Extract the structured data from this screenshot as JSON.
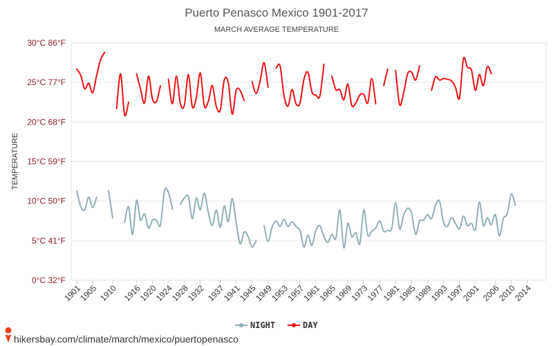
{
  "chart_data": {
    "type": "line",
    "title": "Puerto Penasco Mexico 1901-2017",
    "subtitle": "MARCH AVERAGE TEMPERATURE",
    "ylabel": "TEMPERATURE",
    "ylim": [
      0,
      30
    ],
    "yticks": [
      {
        "value": 0,
        "label": "0°C 32°F"
      },
      {
        "value": 5,
        "label": "5°C 41°F"
      },
      {
        "value": 10,
        "label": "10°C 50°F"
      },
      {
        "value": 15,
        "label": "15°C 59°F"
      },
      {
        "value": 20,
        "label": "20°C 68°F"
      },
      {
        "value": 25,
        "label": "25°C 77°F"
      },
      {
        "value": 30,
        "label": "30°C 86°F"
      }
    ],
    "xlim": [
      1901,
      2017
    ],
    "xticks": [
      1901,
      1905,
      1910,
      1916,
      1920,
      1924,
      1928,
      1932,
      1937,
      1941,
      1945,
      1949,
      1953,
      1957,
      1961,
      1965,
      1969,
      1973,
      1977,
      1981,
      1985,
      1989,
      1993,
      1997,
      2001,
      2006,
      2010,
      2014
    ],
    "grid": true,
    "legend_position": "bottom",
    "series": [
      {
        "name": "NIGHT",
        "color": "#90aeb6",
        "points": [
          [
            1901,
            11.3
          ],
          [
            1902,
            9.3
          ],
          [
            1903,
            8.9
          ],
          [
            1904,
            10.5
          ],
          [
            1905,
            9.2
          ],
          [
            1906,
            10.5
          ],
          null,
          [
            1909,
            11.3
          ],
          [
            1910,
            7.9
          ],
          null,
          [
            1913,
            7.3
          ],
          [
            1914,
            9.3
          ],
          [
            1915,
            5.8
          ],
          [
            1916,
            10.1
          ],
          [
            1917,
            7.6
          ],
          [
            1918,
            8.4
          ],
          [
            1919,
            6.6
          ],
          [
            1920,
            7.6
          ],
          [
            1921,
            7.6
          ],
          [
            1922,
            7.0
          ],
          [
            1923,
            11.3
          ],
          [
            1924,
            11.1
          ],
          [
            1925,
            9.0
          ],
          null,
          [
            1927,
            9.6
          ],
          [
            1928,
            10.4
          ],
          [
            1929,
            10.6
          ],
          [
            1930,
            7.8
          ],
          [
            1931,
            10.4
          ],
          [
            1932,
            8.9
          ],
          [
            1933,
            11.0
          ],
          [
            1934,
            8.6
          ],
          [
            1935,
            6.9
          ],
          [
            1936,
            8.9
          ],
          [
            1937,
            6.7
          ],
          [
            1938,
            9.4
          ],
          [
            1939,
            7.4
          ],
          [
            1940,
            10.3
          ],
          [
            1941,
            7.3
          ],
          [
            1942,
            4.6
          ],
          [
            1943,
            6.1
          ],
          [
            1944,
            5.5
          ],
          [
            1945,
            4.2
          ],
          [
            1946,
            5.0
          ],
          null,
          [
            1948,
            6.9
          ],
          [
            1949,
            4.9
          ],
          [
            1950,
            6.7
          ],
          [
            1951,
            7.5
          ],
          [
            1952,
            6.8
          ],
          [
            1953,
            7.7
          ],
          [
            1954,
            6.8
          ],
          [
            1955,
            7.4
          ],
          [
            1956,
            6.8
          ],
          [
            1957,
            6.3
          ],
          [
            1958,
            4.2
          ],
          [
            1959,
            5.7
          ],
          [
            1960,
            4.4
          ],
          [
            1961,
            6.3
          ],
          [
            1962,
            6.9
          ],
          [
            1963,
            5.5
          ],
          [
            1964,
            4.8
          ],
          [
            1965,
            5.8
          ],
          [
            1966,
            5.3
          ],
          [
            1967,
            8.9
          ],
          [
            1968,
            4.1
          ],
          [
            1969,
            7.2
          ],
          [
            1970,
            5.5
          ],
          [
            1971,
            6.0
          ],
          [
            1972,
            4.6
          ],
          [
            1973,
            8.9
          ],
          [
            1974,
            5.7
          ],
          [
            1975,
            6.2
          ],
          [
            1976,
            6.6
          ],
          [
            1977,
            7.5
          ],
          [
            1978,
            6.2
          ],
          [
            1979,
            6.3
          ],
          [
            1980,
            6.5
          ],
          [
            1981,
            9.8
          ],
          [
            1982,
            6.5
          ],
          [
            1983,
            8.2
          ],
          [
            1984,
            9.1
          ],
          [
            1985,
            8.5
          ],
          [
            1986,
            5.8
          ],
          [
            1987,
            7.5
          ],
          [
            1988,
            7.6
          ],
          [
            1989,
            8.3
          ],
          [
            1990,
            7.8
          ],
          [
            1991,
            9.5
          ],
          [
            1992,
            10.0
          ],
          [
            1993,
            7.3
          ],
          [
            1994,
            6.8
          ],
          [
            1995,
            7.9
          ],
          [
            1996,
            7.2
          ],
          [
            1997,
            6.5
          ],
          [
            1998,
            8.1
          ],
          [
            1999,
            6.9
          ],
          [
            2000,
            7.2
          ],
          [
            2001,
            6.4
          ],
          [
            2002,
            9.9
          ],
          [
            2003,
            6.9
          ],
          [
            2004,
            7.9
          ],
          [
            2005,
            7.0
          ],
          [
            2006,
            8.3
          ],
          [
            2007,
            5.6
          ],
          [
            2008,
            7.8
          ],
          [
            2009,
            8.4
          ],
          [
            2010,
            10.9
          ],
          [
            2011,
            9.5
          ]
        ]
      },
      {
        "name": "DAY",
        "color": "#ee1111",
        "points": [
          [
            1901,
            26.7
          ],
          [
            1902,
            25.9
          ],
          [
            1903,
            24.2
          ],
          [
            1904,
            24.9
          ],
          [
            1905,
            23.7
          ],
          [
            1906,
            25.9
          ],
          [
            1907,
            27.9
          ],
          [
            1908,
            28.8
          ],
          null,
          [
            1911,
            21.7
          ],
          [
            1912,
            26.1
          ],
          [
            1913,
            20.9
          ],
          [
            1914,
            22.5
          ],
          null,
          [
            1916,
            26.1
          ],
          [
            1917,
            24.2
          ],
          [
            1918,
            22.4
          ],
          [
            1919,
            25.8
          ],
          [
            1920,
            22.9
          ],
          [
            1921,
            22.6
          ],
          [
            1922,
            24.6
          ],
          null,
          [
            1924,
            25.4
          ],
          [
            1925,
            22.3
          ],
          [
            1926,
            25.8
          ],
          [
            1927,
            22.3
          ],
          [
            1928,
            22.1
          ],
          [
            1929,
            26.0
          ],
          [
            1930,
            21.9
          ],
          [
            1931,
            23.1
          ],
          [
            1932,
            26.2
          ],
          [
            1933,
            22.0
          ],
          [
            1934,
            22.6
          ],
          [
            1935,
            24.6
          ],
          [
            1936,
            22.0
          ],
          [
            1937,
            21.5
          ],
          [
            1938,
            25.3
          ],
          [
            1939,
            25.0
          ],
          [
            1940,
            21.0
          ],
          [
            1941,
            24.0
          ],
          [
            1942,
            24.0
          ],
          [
            1943,
            22.7
          ],
          null,
          [
            1945,
            25.1
          ],
          [
            1946,
            23.6
          ],
          [
            1947,
            25.2
          ],
          [
            1948,
            27.5
          ],
          [
            1949,
            24.4
          ],
          null,
          [
            1951,
            26.8
          ],
          [
            1952,
            27.1
          ],
          [
            1953,
            23.3
          ],
          [
            1954,
            22.0
          ],
          [
            1955,
            24.1
          ],
          [
            1956,
            22.3
          ],
          [
            1957,
            22.4
          ],
          [
            1958,
            25.4
          ],
          [
            1959,
            26.3
          ],
          [
            1960,
            23.8
          ],
          [
            1961,
            23.4
          ],
          [
            1962,
            23.3
          ],
          [
            1963,
            27.3
          ],
          null,
          [
            1965,
            25.8
          ],
          [
            1966,
            24.1
          ],
          [
            1967,
            24.1
          ],
          [
            1968,
            22.8
          ],
          [
            1969,
            24.8
          ],
          [
            1970,
            22.1
          ],
          [
            1971,
            22.4
          ],
          [
            1972,
            23.4
          ],
          [
            1973,
            23.5
          ],
          [
            1974,
            22.4
          ],
          [
            1975,
            25.5
          ],
          [
            1976,
            22.3
          ],
          null,
          [
            1978,
            24.6
          ],
          [
            1979,
            26.7
          ],
          null,
          [
            1981,
            26.5
          ],
          [
            1982,
            22.2
          ],
          [
            1983,
            23.7
          ],
          [
            1984,
            26.1
          ],
          [
            1985,
            26.3
          ],
          [
            1986,
            25.3
          ],
          [
            1987,
            27.1
          ],
          null,
          [
            1990,
            24.0
          ],
          [
            1991,
            25.7
          ],
          [
            1992,
            25.3
          ],
          [
            1993,
            25.5
          ],
          [
            1994,
            25.4
          ],
          [
            1995,
            25.2
          ],
          [
            1996,
            24.4
          ],
          [
            1997,
            23.0
          ],
          [
            1998,
            28.0
          ],
          [
            1999,
            26.9
          ],
          [
            2000,
            26.6
          ],
          [
            2001,
            24.0
          ],
          [
            2002,
            26.0
          ],
          [
            2003,
            24.6
          ],
          [
            2004,
            27.0
          ],
          [
            2005,
            26.1
          ]
        ]
      }
    ]
  },
  "legend": {
    "night_label": "NIGHT",
    "day_label": "DAY"
  },
  "credit": {
    "text": "hikersbay.com/climate/march/mexico/puertopenasco",
    "pin_color": "#e8431e"
  }
}
